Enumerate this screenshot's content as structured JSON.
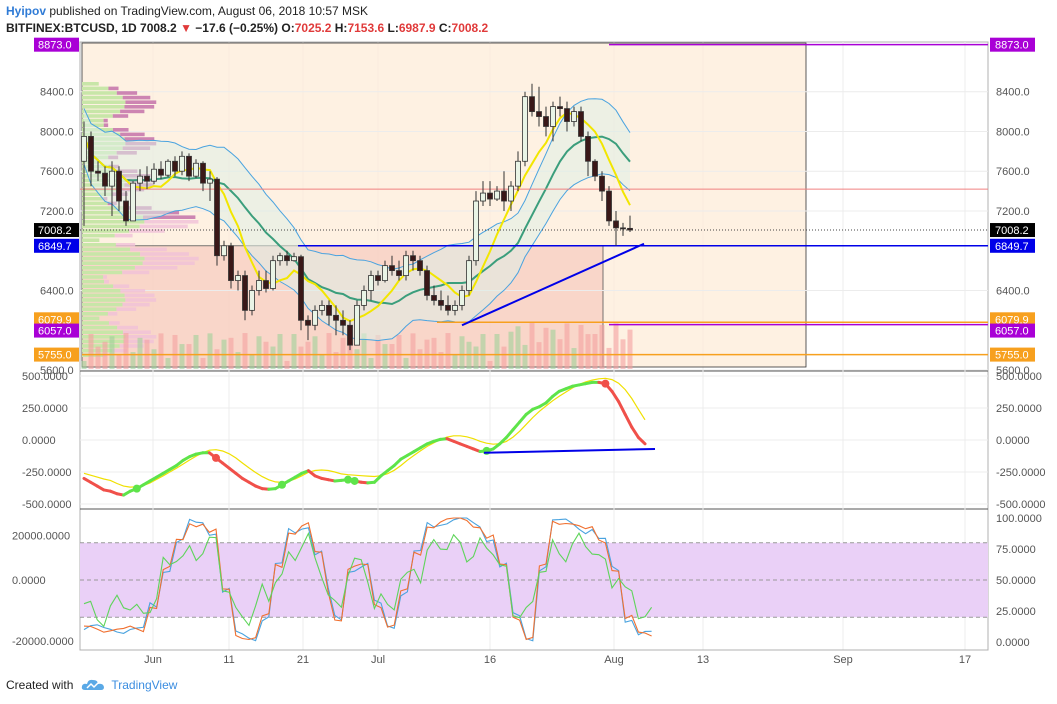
{
  "header": {
    "author": "Hyipov",
    "published": " published on TradingView.com, August 06, 2018 10:57 MSK",
    "symbol": "BITFINEX:BTCUSD, 1D",
    "last": "7008.2",
    "arrow": "▼",
    "change": "−17.6 (−0.25%)",
    "o_label": "O:",
    "o_value": "7025.2",
    "h_label": "H:",
    "h_value": "7153.6",
    "l_label": "L:",
    "l_value": "6987.9",
    "c_label": "C:",
    "c_value": "7008.2"
  },
  "footer": {
    "created_with": "Created with",
    "brand": "TradingView"
  },
  "colors": {
    "up": "#a7d4a4",
    "down": "#3a1818",
    "purple": "#a900d6",
    "orange": "#f7a01e",
    "blue": "#0000e8",
    "red_line": "#f08080",
    "pink": "#f0c0d8",
    "green_hist": "#c8e6a8"
  },
  "chart_data": [
    {
      "type": "candlestick",
      "name": "price",
      "x_ticks": [
        "Jun",
        "11",
        "21",
        "Jul",
        "16",
        "Aug",
        "13",
        "Sep",
        "17"
      ],
      "y_ticks": [
        "8400.0",
        "8000.0",
        "7600.0",
        "7200.0",
        "6400.0",
        "5600.0"
      ],
      "ylim": [
        5600,
        8900
      ],
      "candles": [
        [
          7700,
          8100,
          7050,
          7950
        ],
        [
          7950,
          8000,
          7450,
          7600
        ],
        [
          7600,
          7700,
          7500,
          7580
        ],
        [
          7580,
          7650,
          7350,
          7450
        ],
        [
          7450,
          7700,
          7150,
          7600
        ],
        [
          7600,
          7650,
          7200,
          7300
        ],
        [
          7300,
          7400,
          7050,
          7100
        ],
        [
          7100,
          7500,
          7100,
          7480
        ],
        [
          7480,
          7620,
          7400,
          7550
        ],
        [
          7550,
          7650,
          7420,
          7500
        ],
        [
          7500,
          7680,
          7470,
          7620
        ],
        [
          7620,
          7700,
          7520,
          7560
        ],
        [
          7560,
          7720,
          7540,
          7700
        ],
        [
          7700,
          7750,
          7550,
          7600
        ],
        [
          7600,
          7800,
          7560,
          7750
        ],
        [
          7750,
          7780,
          7500,
          7550
        ],
        [
          7550,
          7720,
          7530,
          7680
        ],
        [
          7680,
          7700,
          7400,
          7480
        ],
        [
          7480,
          7600,
          7300,
          7520
        ],
        [
          7520,
          7540,
          6650,
          6750
        ],
        [
          6750,
          6900,
          6700,
          6850
        ],
        [
          6850,
          6880,
          6420,
          6500
        ],
        [
          6500,
          6600,
          6400,
          6550
        ],
        [
          6550,
          6600,
          6100,
          6200
        ],
        [
          6200,
          6450,
          6150,
          6400
        ],
        [
          6400,
          6600,
          6350,
          6500
        ],
        [
          6500,
          6600,
          6380,
          6420
        ],
        [
          6420,
          6750,
          6400,
          6700
        ],
        [
          6700,
          6780,
          6650,
          6750
        ],
        [
          6750,
          6800,
          6650,
          6700
        ],
        [
          6700,
          6780,
          6690,
          6740
        ],
        [
          6740,
          6760,
          6000,
          6100
        ],
        [
          6100,
          6150,
          5900,
          6050
        ],
        [
          6050,
          6250,
          6000,
          6200
        ],
        [
          6200,
          6300,
          6150,
          6250
        ],
        [
          6250,
          6300,
          6050,
          6150
        ],
        [
          6150,
          6250,
          5950,
          6100
        ],
        [
          6100,
          6200,
          5950,
          6050
        ],
        [
          6050,
          6100,
          5800,
          5850
        ],
        [
          5850,
          6300,
          5850,
          6250
        ],
        [
          6250,
          6450,
          6200,
          6400
        ],
        [
          6400,
          6600,
          6300,
          6550
        ],
        [
          6550,
          6600,
          6450,
          6500
        ],
        [
          6500,
          6700,
          6480,
          6650
        ],
        [
          6650,
          6750,
          6550,
          6600
        ],
        [
          6600,
          6700,
          6500,
          6550
        ],
        [
          6550,
          6800,
          6500,
          6750
        ],
        [
          6750,
          6800,
          6600,
          6700
        ],
        [
          6700,
          6750,
          6550,
          6600
        ],
        [
          6600,
          6650,
          6300,
          6350
        ],
        [
          6350,
          6450,
          6250,
          6300
        ],
        [
          6300,
          6400,
          6200,
          6250
        ],
        [
          6250,
          6350,
          6150,
          6200
        ],
        [
          6200,
          6300,
          6150,
          6250
        ],
        [
          6250,
          6450,
          6200,
          6400
        ],
        [
          6400,
          6750,
          6350,
          6700
        ],
        [
          6700,
          7400,
          6650,
          7300
        ],
        [
          7300,
          7500,
          7250,
          7380
        ],
        [
          7380,
          7500,
          7250,
          7320
        ],
        [
          7320,
          7450,
          7300,
          7400
        ],
        [
          7400,
          7600,
          7200,
          7300
        ],
        [
          7300,
          7500,
          7200,
          7450
        ],
        [
          7450,
          7800,
          7400,
          7700
        ],
        [
          7700,
          8400,
          7650,
          8350
        ],
        [
          8350,
          8480,
          8150,
          8200
        ],
        [
          8200,
          8450,
          8050,
          8150
        ],
        [
          8150,
          8250,
          7950,
          8050
        ],
        [
          8050,
          8300,
          7900,
          8250
        ],
        [
          8250,
          8350,
          8150,
          8230
        ],
        [
          8230,
          8300,
          8000,
          8100
        ],
        [
          8100,
          8250,
          8050,
          8200
        ],
        [
          8200,
          8250,
          7900,
          7950
        ],
        [
          7950,
          8000,
          7550,
          7700
        ],
        [
          7700,
          7720,
          7500,
          7550
        ],
        [
          7550,
          7600,
          7300,
          7400
        ],
        [
          7400,
          7450,
          7050,
          7100
        ],
        [
          7100,
          7200,
          6850,
          7030
        ],
        [
          7030,
          7080,
          6950,
          7020
        ],
        [
          7025,
          7153.6,
          6987.9,
          7008.2
        ]
      ],
      "price_labels": [
        {
          "value": 8873.0,
          "text": "8873.0",
          "color": "#a900d6"
        },
        {
          "value": 7008.2,
          "text": "7008.2",
          "color": "#000000"
        },
        {
          "value": 6849.7,
          "text": "6849.7",
          "color": "#0000e8"
        },
        {
          "value": 6079.9,
          "text": "6079.9",
          "color": "#f7a01e"
        },
        {
          "value": 6057.0,
          "text": "6057.0",
          "color": "#a900d6"
        },
        {
          "value": 5755.0,
          "text": "5755.0",
          "color": "#f7a01e"
        }
      ]
    },
    {
      "type": "line",
      "name": "oscillator",
      "y_ticks": [
        "500.0000",
        "250.0000",
        "0.0000",
        "-250.0000",
        "-500.0000"
      ],
      "ylim": [
        -500,
        500
      ],
      "values": [
        -300,
        -330,
        -360,
        -390,
        -400,
        -420,
        -430,
        -400,
        -380,
        -350,
        -320,
        -290,
        -260,
        -230,
        -200,
        -160,
        -130,
        -110,
        -100,
        -100,
        -140,
        -180,
        -220,
        -260,
        -300,
        -330,
        -360,
        -380,
        -385,
        -380,
        -350,
        -320,
        -290,
        -260,
        -240,
        -280,
        -300,
        -310,
        -320,
        -315,
        -310,
        -320,
        -330,
        -335,
        -330,
        -280,
        -240,
        -200,
        -150,
        -120,
        -90,
        -60,
        -30,
        -10,
        5,
        10,
        -10,
        -30,
        -50,
        -70,
        -90,
        -85,
        -70,
        -30,
        20,
        80,
        140,
        200,
        240,
        260,
        290,
        340,
        380,
        400,
        420,
        430,
        440,
        450,
        450,
        440,
        380,
        300,
        200,
        100,
        20,
        -30
      ]
    },
    {
      "type": "line",
      "name": "stochastic",
      "y_ticks_left": [
        "20000.0000",
        "0.0000",
        "-20000.0000"
      ],
      "y_ticks_right": [
        "100.0000",
        "75.0000",
        "50.0000",
        "25.0000",
        "0.0000"
      ],
      "ylim": [
        0,
        100
      ],
      "band": [
        20,
        80
      ]
    }
  ]
}
